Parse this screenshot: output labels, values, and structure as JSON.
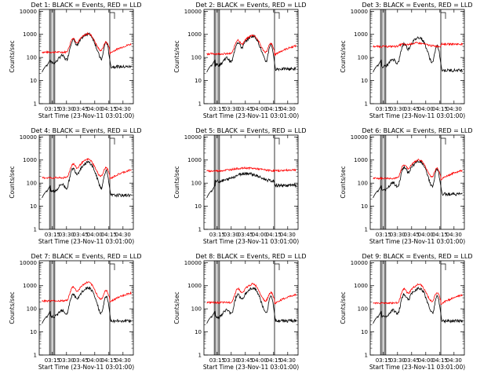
{
  "chart_data": {
    "type": "line",
    "layout": "3x3 grid of panels",
    "x_ticks": [
      "03:15",
      "03:30",
      "03:45",
      "04:00",
      "04:15",
      "04:30"
    ],
    "y_ticks": [
      "1",
      "10",
      "100",
      "1000",
      "10000"
    ],
    "yscale": "log",
    "ylim": [
      1,
      12000
    ],
    "xlim": [
      "03:01",
      "04:41"
    ],
    "xlabel": "Start Time (23-Nov-11 03:01:00)",
    "ylabel": "Counts/sec",
    "series_colors": {
      "events": "#000000",
      "lld": "#ff0000"
    },
    "attenuator_lines_min": [
      11,
      12.5,
      15,
      16.5,
      75
    ],
    "panels": [
      {
        "title": "Det 1: BLACK = Events, RED = LLD",
        "shape": "A",
        "events_scale": 1.0,
        "lld_scale": 1.0
      },
      {
        "title": "Det 2: BLACK = Events, RED = LLD",
        "shape": "A",
        "events_scale": 0.8,
        "lld_scale": 0.85
      },
      {
        "title": "Det 3: BLACK = Events, RED = LLD",
        "shape": "B",
        "events_scale": 0.7,
        "lld_scale": 1.0
      },
      {
        "title": "Det 4: BLACK = Events, RED = LLD",
        "shape": "A",
        "events_scale": 0.75,
        "lld_scale": 1.0
      },
      {
        "title": "Det 5: BLACK = Events, RED = LLD",
        "shape": "C",
        "events_scale": 1.0,
        "lld_scale": 1.0
      },
      {
        "title": "Det 6: BLACK = Events, RED = LLD",
        "shape": "A",
        "events_scale": 0.85,
        "lld_scale": 0.95
      },
      {
        "title": "Det 7: BLACK = Events, RED = LLD",
        "shape": "A",
        "events_scale": 0.75,
        "lld_scale": 1.3
      },
      {
        "title": "Det 8: BLACK = Events, RED = LLD",
        "shape": "A",
        "events_scale": 0.75,
        "lld_scale": 1.1
      },
      {
        "title": "Det 9: BLACK = Events, RED = LLD",
        "shape": "A",
        "events_scale": 0.75,
        "lld_scale": 1.05
      }
    ]
  }
}
